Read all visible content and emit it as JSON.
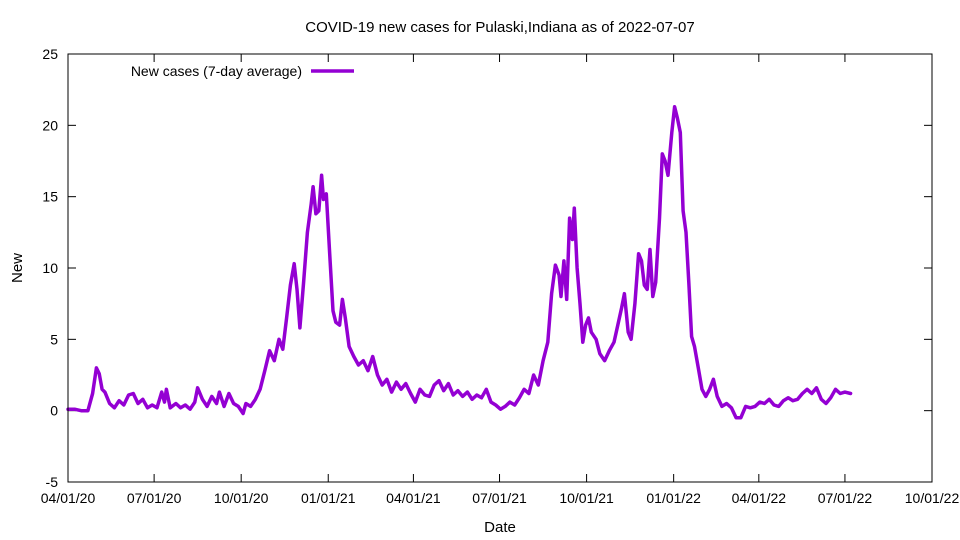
{
  "chart_data": {
    "type": "line",
    "title": "COVID-19 new cases for Pulaski,Indiana as of 2022-07-07",
    "xlabel": "Date",
    "ylabel": "New",
    "xlim": [
      "2020-04-01",
      "2022-10-01"
    ],
    "ylim": [
      -5,
      25
    ],
    "x_ticks": [
      "04/01/20",
      "07/01/20",
      "10/01/20",
      "01/01/21",
      "04/01/21",
      "07/01/21",
      "10/01/21",
      "01/01/22",
      "04/01/22",
      "07/01/22",
      "10/01/22"
    ],
    "y_ticks": [
      -5,
      0,
      5,
      10,
      15,
      20,
      25
    ],
    "grid": false,
    "legend_position": "top-left",
    "series": [
      {
        "name": "New cases (7-day average)",
        "color": "#9400d3",
        "points": [
          [
            "2020-04-01",
            0.1
          ],
          [
            "2020-04-08",
            0.1
          ],
          [
            "2020-04-15",
            0.0
          ],
          [
            "2020-04-22",
            0.0
          ],
          [
            "2020-04-27",
            1.2
          ],
          [
            "2020-05-01",
            3.0
          ],
          [
            "2020-05-04",
            2.6
          ],
          [
            "2020-05-07",
            1.5
          ],
          [
            "2020-05-10",
            1.3
          ],
          [
            "2020-05-15",
            0.5
          ],
          [
            "2020-05-20",
            0.2
          ],
          [
            "2020-05-25",
            0.7
          ],
          [
            "2020-05-30",
            0.4
          ],
          [
            "2020-06-04",
            1.1
          ],
          [
            "2020-06-09",
            1.2
          ],
          [
            "2020-06-14",
            0.5
          ],
          [
            "2020-06-19",
            0.8
          ],
          [
            "2020-06-24",
            0.2
          ],
          [
            "2020-06-29",
            0.4
          ],
          [
            "2020-07-04",
            0.2
          ],
          [
            "2020-07-09",
            1.3
          ],
          [
            "2020-07-12",
            0.6
          ],
          [
            "2020-07-14",
            1.5
          ],
          [
            "2020-07-18",
            0.2
          ],
          [
            "2020-07-24",
            0.5
          ],
          [
            "2020-07-29",
            0.2
          ],
          [
            "2020-08-03",
            0.4
          ],
          [
            "2020-08-08",
            0.1
          ],
          [
            "2020-08-13",
            0.6
          ],
          [
            "2020-08-16",
            1.6
          ],
          [
            "2020-08-21",
            0.8
          ],
          [
            "2020-08-26",
            0.3
          ],
          [
            "2020-08-31",
            1.0
          ],
          [
            "2020-09-05",
            0.5
          ],
          [
            "2020-09-08",
            1.3
          ],
          [
            "2020-09-13",
            0.3
          ],
          [
            "2020-09-18",
            1.2
          ],
          [
            "2020-09-23",
            0.5
          ],
          [
            "2020-09-28",
            0.3
          ],
          [
            "2020-10-03",
            -0.2
          ],
          [
            "2020-10-06",
            0.5
          ],
          [
            "2020-10-11",
            0.3
          ],
          [
            "2020-10-16",
            0.8
          ],
          [
            "2020-10-21",
            1.5
          ],
          [
            "2020-10-26",
            2.8
          ],
          [
            "2020-10-31",
            4.2
          ],
          [
            "2020-11-05",
            3.5
          ],
          [
            "2020-11-10",
            5.0
          ],
          [
            "2020-11-14",
            4.3
          ],
          [
            "2020-11-18",
            6.5
          ],
          [
            "2020-11-22",
            8.8
          ],
          [
            "2020-11-26",
            10.3
          ],
          [
            "2020-11-29",
            8.5
          ],
          [
            "2020-12-02",
            5.8
          ],
          [
            "2020-12-06",
            9.0
          ],
          [
            "2020-12-10",
            12.5
          ],
          [
            "2020-12-14",
            14.5
          ],
          [
            "2020-12-16",
            15.7
          ],
          [
            "2020-12-19",
            13.8
          ],
          [
            "2020-12-22",
            14.0
          ],
          [
            "2020-12-25",
            16.5
          ],
          [
            "2020-12-27",
            14.8
          ],
          [
            "2020-12-30",
            15.2
          ],
          [
            "2021-01-03",
            10.5
          ],
          [
            "2021-01-06",
            7.0
          ],
          [
            "2021-01-09",
            6.2
          ],
          [
            "2021-01-13",
            6.0
          ],
          [
            "2021-01-16",
            7.8
          ],
          [
            "2021-01-19",
            6.5
          ],
          [
            "2021-01-23",
            4.5
          ],
          [
            "2021-01-28",
            3.8
          ],
          [
            "2021-02-02",
            3.2
          ],
          [
            "2021-02-07",
            3.5
          ],
          [
            "2021-02-12",
            2.8
          ],
          [
            "2021-02-17",
            3.8
          ],
          [
            "2021-02-22",
            2.5
          ],
          [
            "2021-02-27",
            1.8
          ],
          [
            "2021-03-04",
            2.2
          ],
          [
            "2021-03-09",
            1.3
          ],
          [
            "2021-03-14",
            2.0
          ],
          [
            "2021-03-19",
            1.5
          ],
          [
            "2021-03-24",
            1.9
          ],
          [
            "2021-03-29",
            1.2
          ],
          [
            "2021-04-03",
            0.6
          ],
          [
            "2021-04-08",
            1.5
          ],
          [
            "2021-04-13",
            1.1
          ],
          [
            "2021-04-18",
            1.0
          ],
          [
            "2021-04-23",
            1.8
          ],
          [
            "2021-04-28",
            2.1
          ],
          [
            "2021-05-03",
            1.4
          ],
          [
            "2021-05-08",
            1.9
          ],
          [
            "2021-05-13",
            1.1
          ],
          [
            "2021-05-18",
            1.4
          ],
          [
            "2021-05-23",
            1.0
          ],
          [
            "2021-05-28",
            1.3
          ],
          [
            "2021-06-02",
            0.8
          ],
          [
            "2021-06-07",
            1.1
          ],
          [
            "2021-06-12",
            0.9
          ],
          [
            "2021-06-17",
            1.5
          ],
          [
            "2021-06-22",
            0.6
          ],
          [
            "2021-06-27",
            0.4
          ],
          [
            "2021-07-02",
            0.1
          ],
          [
            "2021-07-07",
            0.3
          ],
          [
            "2021-07-12",
            0.6
          ],
          [
            "2021-07-17",
            0.4
          ],
          [
            "2021-07-22",
            0.9
          ],
          [
            "2021-07-27",
            1.5
          ],
          [
            "2021-08-01",
            1.2
          ],
          [
            "2021-08-06",
            2.5
          ],
          [
            "2021-08-11",
            1.8
          ],
          [
            "2021-08-16",
            3.5
          ],
          [
            "2021-08-21",
            4.8
          ],
          [
            "2021-08-25",
            8.2
          ],
          [
            "2021-08-29",
            10.2
          ],
          [
            "2021-09-02",
            9.5
          ],
          [
            "2021-09-04",
            8.0
          ],
          [
            "2021-09-07",
            10.5
          ],
          [
            "2021-09-10",
            7.8
          ],
          [
            "2021-09-13",
            13.5
          ],
          [
            "2021-09-16",
            12.0
          ],
          [
            "2021-09-18",
            14.2
          ],
          [
            "2021-09-21",
            10.0
          ],
          [
            "2021-09-24",
            7.5
          ],
          [
            "2021-09-27",
            4.8
          ],
          [
            "2021-09-30",
            6.0
          ],
          [
            "2021-10-03",
            6.5
          ],
          [
            "2021-10-06",
            5.5
          ],
          [
            "2021-10-11",
            5.0
          ],
          [
            "2021-10-15",
            4.0
          ],
          [
            "2021-10-20",
            3.5
          ],
          [
            "2021-10-25",
            4.2
          ],
          [
            "2021-10-30",
            4.8
          ],
          [
            "2021-11-03",
            6.0
          ],
          [
            "2021-11-07",
            7.2
          ],
          [
            "2021-11-10",
            8.2
          ],
          [
            "2021-11-14",
            5.5
          ],
          [
            "2021-11-17",
            5.0
          ],
          [
            "2021-11-21",
            7.5
          ],
          [
            "2021-11-25",
            11.0
          ],
          [
            "2021-11-28",
            10.5
          ],
          [
            "2021-12-01",
            8.8
          ],
          [
            "2021-12-04",
            8.5
          ],
          [
            "2021-12-07",
            11.3
          ],
          [
            "2021-12-10",
            8.0
          ],
          [
            "2021-12-13",
            9.0
          ],
          [
            "2021-12-17",
            13.5
          ],
          [
            "2021-12-20",
            18.0
          ],
          [
            "2021-12-23",
            17.5
          ],
          [
            "2021-12-26",
            16.5
          ],
          [
            "2021-12-30",
            19.5
          ],
          [
            "2022-01-02",
            21.3
          ],
          [
            "2022-01-05",
            20.5
          ],
          [
            "2022-01-08",
            19.5
          ],
          [
            "2022-01-11",
            14.0
          ],
          [
            "2022-01-14",
            12.5
          ],
          [
            "2022-01-17",
            9.0
          ],
          [
            "2022-01-20",
            5.2
          ],
          [
            "2022-01-23",
            4.5
          ],
          [
            "2022-01-27",
            3.0
          ],
          [
            "2022-01-31",
            1.5
          ],
          [
            "2022-02-04",
            1.0
          ],
          [
            "2022-02-08",
            1.5
          ],
          [
            "2022-02-12",
            2.2
          ],
          [
            "2022-02-16",
            1.0
          ],
          [
            "2022-02-21",
            0.3
          ],
          [
            "2022-02-26",
            0.5
          ],
          [
            "2022-03-03",
            0.2
          ],
          [
            "2022-03-08",
            -0.5
          ],
          [
            "2022-03-13",
            -0.5
          ],
          [
            "2022-03-18",
            0.3
          ],
          [
            "2022-03-23",
            0.2
          ],
          [
            "2022-03-28",
            0.3
          ],
          [
            "2022-04-02",
            0.6
          ],
          [
            "2022-04-07",
            0.5
          ],
          [
            "2022-04-12",
            0.8
          ],
          [
            "2022-04-17",
            0.4
          ],
          [
            "2022-04-22",
            0.3
          ],
          [
            "2022-04-27",
            0.7
          ],
          [
            "2022-05-02",
            0.9
          ],
          [
            "2022-05-07",
            0.7
          ],
          [
            "2022-05-12",
            0.8
          ],
          [
            "2022-05-17",
            1.2
          ],
          [
            "2022-05-22",
            1.5
          ],
          [
            "2022-05-27",
            1.2
          ],
          [
            "2022-06-01",
            1.6
          ],
          [
            "2022-06-06",
            0.8
          ],
          [
            "2022-06-11",
            0.5
          ],
          [
            "2022-06-16",
            0.9
          ],
          [
            "2022-06-21",
            1.5
          ],
          [
            "2022-06-26",
            1.2
          ],
          [
            "2022-07-01",
            1.3
          ],
          [
            "2022-07-07",
            1.2
          ]
        ]
      }
    ]
  }
}
